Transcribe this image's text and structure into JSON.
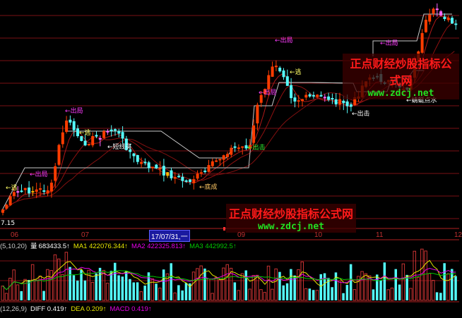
{
  "main_chart": {
    "low_price_label": "7.15",
    "signals": [
      {
        "text": "←出局",
        "color": "#ff3cff"
      },
      {
        "text": "←逃",
        "color": "#ffff66"
      },
      {
        "text": "←出局",
        "color": "#ff3cff"
      },
      {
        "text": "←逃",
        "color": "#ffff66"
      },
      {
        "text": "←短线买",
        "color": "#ffffff"
      },
      {
        "text": "←底成",
        "color": "#ffc864"
      },
      {
        "text": "←出击",
        "color": "#33ff33"
      },
      {
        "text": "←出局",
        "color": "#ff3cff"
      },
      {
        "text": "←出局",
        "color": "#ff3cff"
      },
      {
        "text": "←逃",
        "color": "#ffff66"
      },
      {
        "text": "←出击",
        "color": "#ffffff"
      },
      {
        "text": "←出局",
        "color": "#ff3cff"
      },
      {
        "text": "←蜻蜓点水",
        "color": "#ffffff"
      }
    ]
  },
  "watermarks": [
    {
      "title": "正点财经炒股指标公式网",
      "url": "www.zdcj.net"
    },
    {
      "title": "正点财经炒股指标公式网",
      "url": "www.zdcj.net"
    }
  ],
  "date_axis": {
    "months": [
      "06",
      "07",
      "09",
      "10",
      "11",
      "12"
    ],
    "cursor_date": "17/07/31,一"
  },
  "volume_panel": {
    "params": "(5,10,20)",
    "vol_label": "量",
    "vol_value": "683433.5↑",
    "ma1": "MA1 422076.344↑",
    "ma2": "MA2 422325.813↑",
    "ma3": "MA3 442992.5↑"
  },
  "macd_panel": {
    "params": "(12,26,9)",
    "diff": "DIFF 0.419↑",
    "dea": "DEA 0.209↑",
    "macd": "MACD 0.419↑"
  },
  "colors": {
    "up": "#ff3c00",
    "down": "#54fcfc",
    "grid": "#7a0f14",
    "ma1": "#e6e600",
    "ma2": "#e600e6",
    "ma3": "#00c800"
  }
}
